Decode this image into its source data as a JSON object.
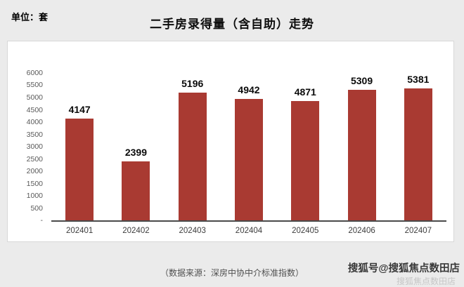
{
  "header": {
    "unit_label": "单位：套"
  },
  "chart_data": {
    "type": "bar",
    "title": "二手房录得量（含自助）走势",
    "categories": [
      "202401",
      "202402",
      "202403",
      "202404",
      "202405",
      "202406",
      "202407"
    ],
    "values": [
      4147,
      2399,
      5196,
      4942,
      4871,
      5309,
      5381
    ],
    "xlabel": "",
    "ylabel": "",
    "ylim": [
      0,
      6000
    ],
    "yticks": [
      6000,
      5500,
      5000,
      4500,
      4000,
      3500,
      3000,
      2500,
      2000,
      1500,
      1000,
      500
    ],
    "ytick_zero_label": "-",
    "bar_color": "#a93a32",
    "grid": false,
    "legend": "none",
    "value_labels_shown": true
  },
  "footer": {
    "source_note": "（数据来源：深房中协中介标准指数）"
  },
  "watermark": {
    "line1": "搜狐号@搜狐焦点数田店",
    "line2": "搜狐焦点数田店"
  }
}
